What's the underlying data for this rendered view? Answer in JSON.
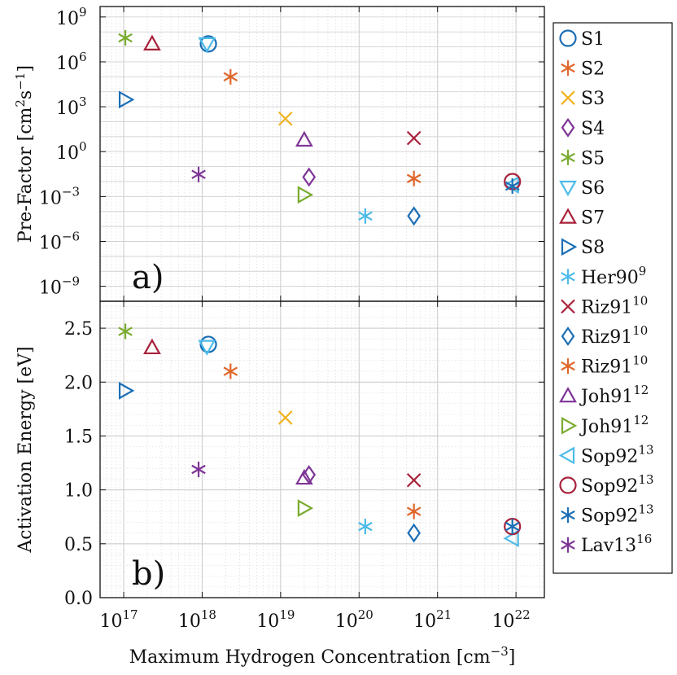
{
  "chart_data": [
    {
      "type": "scatter",
      "panel_label": "a)",
      "ylabel": "Pre-Factor [cm²s⁻¹]",
      "y_scale": "log",
      "ylim": [
        1e-10,
        5000000000.0
      ],
      "yticks": [
        {
          "value": 1e-09,
          "base": "10",
          "exp": "−9"
        },
        {
          "value": 1e-06,
          "base": "10",
          "exp": "−6"
        },
        {
          "value": 0.001,
          "base": "10",
          "exp": "−3"
        },
        {
          "value": 1,
          "base": "10",
          "exp": "0"
        },
        {
          "value": 1000.0,
          "base": "10",
          "exp": "3"
        },
        {
          "value": 1000000.0,
          "base": "10",
          "exp": "6"
        },
        {
          "value": 1000000000.0,
          "base": "10",
          "exp": "9"
        }
      ],
      "grid": true,
      "series": [
        {
          "name": "S1",
          "points": [
            [
              1.2e+18,
              16000000.0
            ]
          ]
        },
        {
          "name": "S2",
          "points": [
            [
              2.3e+18,
              100000.0
            ]
          ]
        },
        {
          "name": "S3",
          "points": [
            [
              1.15e+19,
              160.0
            ]
          ]
        },
        {
          "name": "S4",
          "points": [
            [
              2.3e+19,
              0.02
            ]
          ]
        },
        {
          "name": "S5",
          "points": [
            [
              1.05e+17,
              40000000.0
            ]
          ]
        },
        {
          "name": "S6",
          "points": [
            [
              1.15e+18,
              16000000.0
            ]
          ]
        },
        {
          "name": "S7",
          "points": [
            [
              2.3e+17,
              16000000.0
            ]
          ]
        },
        {
          "name": "S8",
          "points": [
            [
              1.05e+17,
              3000.0
            ]
          ]
        },
        {
          "name": "Her90",
          "points": [
            [
              1.2e+20,
              5e-05
            ]
          ]
        },
        {
          "name": "Riz91a",
          "points": [
            [
              5e+20,
              8.0
            ]
          ]
        },
        {
          "name": "Riz91b",
          "points": [
            [
              5e+20,
              5e-05
            ]
          ]
        },
        {
          "name": "Riz91c",
          "points": [
            [
              5e+20,
              0.016
            ]
          ]
        },
        {
          "name": "Joh91a",
          "points": [
            [
              2e+19,
              6.0
            ]
          ]
        },
        {
          "name": "Joh91b",
          "points": [
            [
              2e+19,
              0.0013
            ]
          ]
        },
        {
          "name": "Sop92a",
          "points": [
            [
              9e+21,
              0.006
            ]
          ]
        },
        {
          "name": "Sop92b",
          "points": [
            [
              9e+21,
              0.01
            ]
          ]
        },
        {
          "name": "Sop92c",
          "points": [
            [
              9e+21,
              0.005
            ]
          ]
        },
        {
          "name": "Lav13",
          "points": [
            [
              9e+17,
              0.03
            ]
          ]
        }
      ]
    },
    {
      "type": "scatter",
      "panel_label": "b)",
      "ylabel": "Activation Energy [eV]",
      "y_scale": "linear",
      "ylim": [
        0,
        2.75
      ],
      "yticks": [
        {
          "value": 0.0,
          "label": "0.0"
        },
        {
          "value": 0.5,
          "label": "0.5"
        },
        {
          "value": 1.0,
          "label": "1.0"
        },
        {
          "value": 1.5,
          "label": "1.5"
        },
        {
          "value": 2.0,
          "label": "2.0"
        },
        {
          "value": 2.5,
          "label": "2.5"
        }
      ],
      "grid": true,
      "series": [
        {
          "name": "S1",
          "points": [
            [
              1.2e+18,
              2.35
            ]
          ]
        },
        {
          "name": "S2",
          "points": [
            [
              2.3e+18,
              2.1
            ]
          ]
        },
        {
          "name": "S3",
          "points": [
            [
              1.15e+19,
              1.67
            ]
          ]
        },
        {
          "name": "S4",
          "points": [
            [
              2.3e+19,
              1.14
            ]
          ]
        },
        {
          "name": "S5",
          "points": [
            [
              1.05e+17,
              2.47
            ]
          ]
        },
        {
          "name": "S6",
          "points": [
            [
              1.15e+18,
              2.33
            ]
          ]
        },
        {
          "name": "S7",
          "points": [
            [
              2.3e+17,
              2.32
            ]
          ]
        },
        {
          "name": "S8",
          "points": [
            [
              1.05e+17,
              1.92
            ]
          ]
        },
        {
          "name": "Her90",
          "points": [
            [
              1.2e+20,
              0.66
            ]
          ]
        },
        {
          "name": "Riz91a",
          "points": [
            [
              5e+20,
              1.09
            ]
          ]
        },
        {
          "name": "Riz91b",
          "points": [
            [
              5e+20,
              0.6
            ]
          ]
        },
        {
          "name": "Riz91c",
          "points": [
            [
              5e+20,
              0.8
            ]
          ]
        },
        {
          "name": "Joh91a",
          "points": [
            [
              2e+19,
              1.11
            ]
          ]
        },
        {
          "name": "Joh91b",
          "points": [
            [
              2e+19,
              0.83
            ]
          ]
        },
        {
          "name": "Sop92a",
          "points": [
            [
              9e+21,
              0.55
            ]
          ]
        },
        {
          "name": "Sop92b",
          "points": [
            [
              9e+21,
              0.66
            ]
          ]
        },
        {
          "name": "Sop92c",
          "points": [
            [
              9e+21,
              0.66
            ]
          ]
        },
        {
          "name": "Lav13",
          "points": [
            [
              9e+17,
              1.19
            ]
          ]
        }
      ]
    }
  ],
  "x_axis": {
    "xlabel_text": "Maximum Hydrogen Concentration [cm",
    "xlabel_exp": "−3",
    "xlabel_close": "]",
    "x_scale": "log",
    "xlim": [
      5e+16,
      2.3e+22
    ],
    "xticks": [
      {
        "value": 1e+17,
        "base": "10",
        "exp": "17"
      },
      {
        "value": 1e+18,
        "base": "10",
        "exp": "18"
      },
      {
        "value": 1e+19,
        "base": "10",
        "exp": "19"
      },
      {
        "value": 1e+20,
        "base": "10",
        "exp": "20"
      },
      {
        "value": 1e+21,
        "base": "10",
        "exp": "21"
      },
      {
        "value": 1e+22,
        "base": "10",
        "exp": "22"
      }
    ]
  },
  "legend": {
    "placement": "right",
    "entries": [
      {
        "series": "S1",
        "label": "S1",
        "sup": "",
        "marker": "circle",
        "color": "#1a6eb5"
      },
      {
        "series": "S2",
        "label": "S2",
        "sup": "",
        "marker": "asterisk",
        "color": "#e0662a"
      },
      {
        "series": "S3",
        "label": "S3",
        "sup": "",
        "marker": "x",
        "color": "#f0b21e"
      },
      {
        "series": "S4",
        "label": "S4",
        "sup": "",
        "marker": "diamond",
        "color": "#7e3596"
      },
      {
        "series": "S5",
        "label": "S5",
        "sup": "",
        "marker": "asterisk",
        "color": "#79ab2e"
      },
      {
        "series": "S6",
        "label": "S6",
        "sup": "",
        "marker": "triangle-down",
        "color": "#4dbbe9"
      },
      {
        "series": "S7",
        "label": "S7",
        "sup": "",
        "marker": "triangle-up",
        "color": "#a8213a"
      },
      {
        "series": "S8",
        "label": "S8",
        "sup": "",
        "marker": "triangle-right",
        "color": "#1a6eb5"
      },
      {
        "series": "Her90",
        "label": "Her90",
        "sup": "9",
        "marker": "asterisk",
        "color": "#4dbbe9"
      },
      {
        "series": "Riz91a",
        "label": "Riz91",
        "sup": "10",
        "marker": "x",
        "color": "#a8213a"
      },
      {
        "series": "Riz91b",
        "label": "Riz91",
        "sup": "10",
        "marker": "diamond",
        "color": "#1a6eb5"
      },
      {
        "series": "Riz91c",
        "label": "Riz91",
        "sup": "10",
        "marker": "asterisk",
        "color": "#e0662a"
      },
      {
        "series": "Joh91a",
        "label": "Joh91",
        "sup": "12",
        "marker": "triangle-up",
        "color": "#7e3596"
      },
      {
        "series": "Joh91b",
        "label": "Joh91",
        "sup": "12",
        "marker": "triangle-right",
        "color": "#79ab2e"
      },
      {
        "series": "Sop92a",
        "label": "Sop92",
        "sup": "13",
        "marker": "triangle-left",
        "color": "#4dbbe9"
      },
      {
        "series": "Sop92b",
        "label": "Sop92",
        "sup": "13",
        "marker": "circle",
        "color": "#a8213a"
      },
      {
        "series": "Sop92c",
        "label": "Sop92",
        "sup": "13",
        "marker": "asterisk",
        "color": "#1a6eb5"
      },
      {
        "series": "Lav13",
        "label": "Lav13",
        "sup": "16",
        "marker": "asterisk",
        "color": "#7e3596"
      }
    ]
  }
}
